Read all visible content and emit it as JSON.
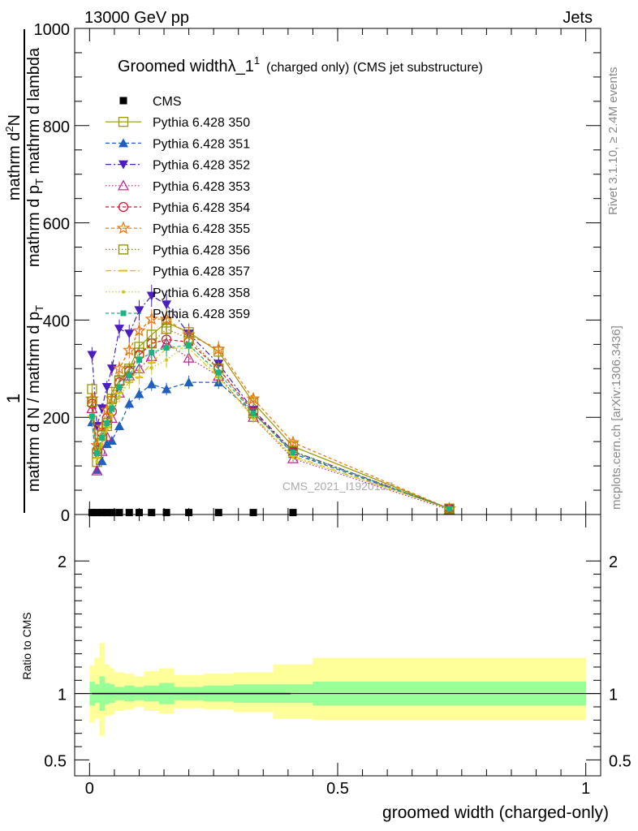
{
  "header": {
    "left": "13000 GeV pp",
    "right": "Jets"
  },
  "side_labels": {
    "rivet": "Rivet 3.1.10, ≥ 2.4M events",
    "mcplots": "mcplots.cern.ch [arXiv:1306.3436]"
  },
  "watermark": "CMS_2021_I1920187",
  "top_title": {
    "main": "Groomed width",
    "lambda": "λ_1",
    "sup": "1",
    "suffix": "(charged only) (CMS jet substructure)"
  },
  "chart_data": [
    {
      "type": "line",
      "title": "Groomed widthλ_1^1 (charged only) (CMS jet substructure)",
      "ylabel_parts": [
        "1",
        "mathrm d N / mathrm d p",
        "T",
        "mathrm d N",
        "mathrm d p",
        "T",
        " mathrm d lambda"
      ],
      "ylabel_frac": {
        "num": "1",
        "den": "mathrm d N / mathrm d p",
        "den_sub": "T",
        "num2": "mathrm d",
        "num2_sup": "2",
        "num2_tail": "N",
        "den2_a": "mathrm d p",
        "den2_sub": "T",
        "den2_b": " mathrm d lambda"
      },
      "ylim": [
        0,
        1000
      ],
      "yticks": [
        "0",
        "200",
        "400",
        "600",
        "800",
        "1000"
      ],
      "xlim": [
        -0.03,
        1.03
      ],
      "x": [
        0.005,
        0.015,
        0.025,
        0.035,
        0.045,
        0.06,
        0.08,
        0.1,
        0.125,
        0.155,
        0.2,
        0.26,
        0.33,
        0.41,
        0.725
      ],
      "series": [
        {
          "name": "CMS",
          "color": "#000000",
          "marker": "square-filled",
          "dash": "",
          "values": [
            4,
            4,
            4,
            4,
            4,
            4,
            4,
            4,
            4,
            4,
            4,
            4,
            4,
            4,
            null
          ]
        },
        {
          "name": "Pythia 6.428 350",
          "color": "#999900",
          "marker": "square-open",
          "dash": "",
          "values": [
            258,
            108,
            148,
            182,
            252,
            275,
            300,
            345,
            370,
            395,
            375,
            335,
            230,
            140,
            12
          ]
        },
        {
          "name": "Pythia 6.428 351",
          "color": "#1f5fbf",
          "marker": "triangle-up-filled",
          "dash": "5,3",
          "values": [
            190,
            92,
            110,
            145,
            152,
            182,
            228,
            248,
            268,
            258,
            272,
            272,
            210,
            125,
            12
          ]
        },
        {
          "name": "Pythia 6.428 352",
          "color": "#4b1fbf",
          "marker": "triangle-down-filled",
          "dash": "7,3,2,3",
          "values": [
            328,
            182,
            218,
            262,
            300,
            382,
            372,
            420,
            450,
            432,
            372,
            310,
            215,
            130,
            12
          ]
        },
        {
          "name": "Pythia 6.428 353",
          "color": "#bf1f8c",
          "marker": "triangle-up-open",
          "dash": "1.5,2.5",
          "values": [
            218,
            90,
            130,
            160,
            198,
            250,
            285,
            300,
            325,
            352,
            322,
            285,
            200,
            115,
            10
          ]
        },
        {
          "name": "Pythia 6.428 354",
          "color": "#e0142a",
          "marker": "circle-open",
          "dash": "4,3",
          "values": [
            228,
            132,
            168,
            198,
            212,
            272,
            295,
            328,
            352,
            360,
            355,
            300,
            212,
            128,
            12
          ]
        },
        {
          "name": "Pythia 6.428 355",
          "color": "#f07000",
          "marker": "star-open",
          "dash": "4,3",
          "values": [
            238,
            142,
            180,
            215,
            238,
            300,
            338,
            378,
            402,
            402,
            370,
            340,
            238,
            148,
            12
          ]
        },
        {
          "name": "Pythia 6.428 356",
          "color": "#8a8a00",
          "marker": "square-open",
          "dash": "1.5,2.5",
          "values": [
            232,
            126,
            163,
            188,
            238,
            276,
            296,
            333,
            352,
            382,
            362,
            300,
            208,
            130,
            12
          ]
        },
        {
          "name": "Pythia 6.428 357",
          "color": "#e0c000",
          "marker": "tick",
          "dash": "7,3,2,3",
          "values": [
            202,
            116,
            153,
            180,
            222,
            250,
            272,
            282,
            312,
            342,
            342,
            282,
            202,
            120,
            12
          ]
        },
        {
          "name": "Pythia 6.428 358",
          "color": "#c8c814",
          "marker": "dot",
          "dash": "1.5,2.5",
          "values": [
            198,
            108,
            143,
            175,
            205,
            242,
            272,
            296,
            302,
            318,
            352,
            285,
            198,
            118,
            12
          ]
        },
        {
          "name": "Pythia 6.428 359",
          "color": "#19b482",
          "marker": "square-filled-small",
          "dash": "4,3",
          "values": [
            202,
            126,
            158,
            188,
            218,
            262,
            286,
            318,
            333,
            343,
            348,
            292,
            208,
            128,
            12
          ]
        }
      ]
    },
    {
      "type": "area",
      "ylabel": "Ratio to CMS",
      "xlabel": "groomed width (charged-only)",
      "ylim": [
        0.38,
        2.35
      ],
      "yticks": [
        "0.5",
        "1",
        "2"
      ],
      "xticks": [
        "0",
        "0.5",
        "1"
      ],
      "xlim": [
        -0.03,
        1.03
      ],
      "edges": [
        0,
        0.01,
        0.02,
        0.03,
        0.04,
        0.05,
        0.07,
        0.09,
        0.11,
        0.14,
        0.17,
        0.23,
        0.29,
        0.37,
        0.45,
        1.0
      ],
      "inner_band": {
        "color": "#99ff99",
        "lo": [
          0.91,
          0.93,
          0.87,
          0.92,
          0.93,
          0.95,
          0.94,
          0.95,
          0.94,
          0.92,
          0.95,
          0.94,
          0.93,
          0.93,
          0.91
        ],
        "hi": [
          1.09,
          1.07,
          1.13,
          1.08,
          1.07,
          1.05,
          1.06,
          1.05,
          1.06,
          1.08,
          1.05,
          1.06,
          1.07,
          1.07,
          1.09
        ]
      },
      "outer_band": {
        "color": "#ffff99",
        "lo": [
          0.78,
          0.81,
          0.68,
          0.83,
          0.84,
          0.87,
          0.88,
          0.9,
          0.87,
          0.85,
          0.89,
          0.88,
          0.86,
          0.81,
          0.8
        ],
        "hi": [
          1.21,
          1.27,
          1.38,
          1.22,
          1.19,
          1.16,
          1.15,
          1.13,
          1.17,
          1.19,
          1.14,
          1.15,
          1.16,
          1.22,
          1.27
        ]
      },
      "reference": 1
    }
  ]
}
